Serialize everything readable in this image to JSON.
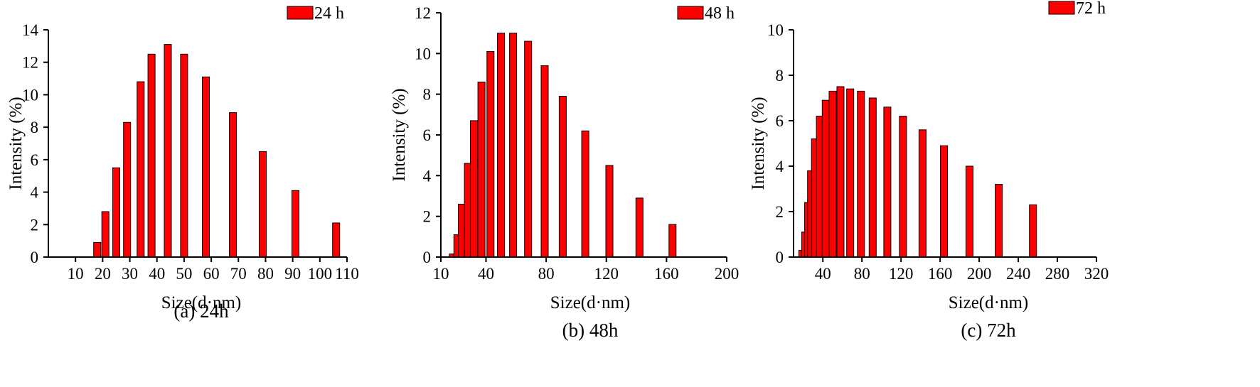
{
  "chart_data": [
    {
      "type": "bar",
      "caption": "(a) 24h",
      "xlabel": "Size(d·nm)",
      "ylabel": "Intensity (%)",
      "legend": "24 h",
      "legend_position": "top-right",
      "bar_color": "#ff0000",
      "xlim": [
        0,
        110
      ],
      "ylim": [
        0,
        14
      ],
      "x_ticks": [
        10,
        20,
        30,
        40,
        50,
        60,
        70,
        80,
        90,
        100,
        110
      ],
      "y_ticks": [
        0,
        2,
        4,
        6,
        8,
        10,
        12,
        14
      ],
      "x": [
        18,
        21,
        25,
        29,
        34,
        38,
        44,
        50,
        58,
        68,
        79,
        91,
        106
      ],
      "values": [
        0.9,
        2.8,
        5.5,
        8.3,
        10.8,
        12.5,
        13.1,
        12.5,
        11.1,
        8.9,
        6.5,
        4.1,
        2.1
      ]
    },
    {
      "type": "bar",
      "caption": "(b) 48h",
      "xlabel": "Size(d·nm)",
      "ylabel": "Intensity (%)",
      "legend": "48 h",
      "legend_position": "top-right",
      "bar_color": "#ff0000",
      "xlim": [
        10,
        200
      ],
      "ylim": [
        0,
        12
      ],
      "x_ticks": [
        10,
        40,
        80,
        120,
        160,
        200
      ],
      "y_ticks": [
        0,
        2,
        4,
        6,
        8,
        10,
        12
      ],
      "x": [
        18,
        21,
        24,
        28,
        32,
        37,
        43,
        50,
        58,
        68,
        79,
        91,
        106,
        122,
        142,
        164,
        190
      ],
      "values": [
        0.15,
        1.1,
        2.6,
        4.6,
        6.7,
        8.6,
        10.1,
        11.0,
        11.0,
        10.6,
        9.4,
        7.9,
        6.2,
        4.5,
        2.9,
        1.6,
        0.0
      ]
    },
    {
      "type": "bar",
      "caption": "(c) 72h",
      "xlabel": "Size(d·nm)",
      "ylabel": "Intensity (%)",
      "legend": "72 h",
      "legend_position": "top-right",
      "bar_color": "#ff0000",
      "xlim": [
        10,
        320
      ],
      "ylim": [
        0,
        10
      ],
      "x_ticks": [
        40,
        80,
        120,
        160,
        200,
        240,
        280,
        320
      ],
      "y_ticks": [
        0,
        2,
        4,
        6,
        8,
        10
      ],
      "x": [
        19,
        22,
        25,
        28,
        32,
        37,
        43,
        50,
        58,
        68,
        79,
        91,
        106,
        122,
        142,
        164,
        190,
        220,
        255,
        295
      ],
      "values": [
        0.3,
        1.1,
        2.4,
        3.8,
        5.2,
        6.2,
        6.9,
        7.3,
        7.5,
        7.4,
        7.3,
        7.0,
        6.6,
        6.2,
        5.6,
        4.9,
        4.0,
        3.2,
        2.3,
        0.0
      ]
    }
  ]
}
